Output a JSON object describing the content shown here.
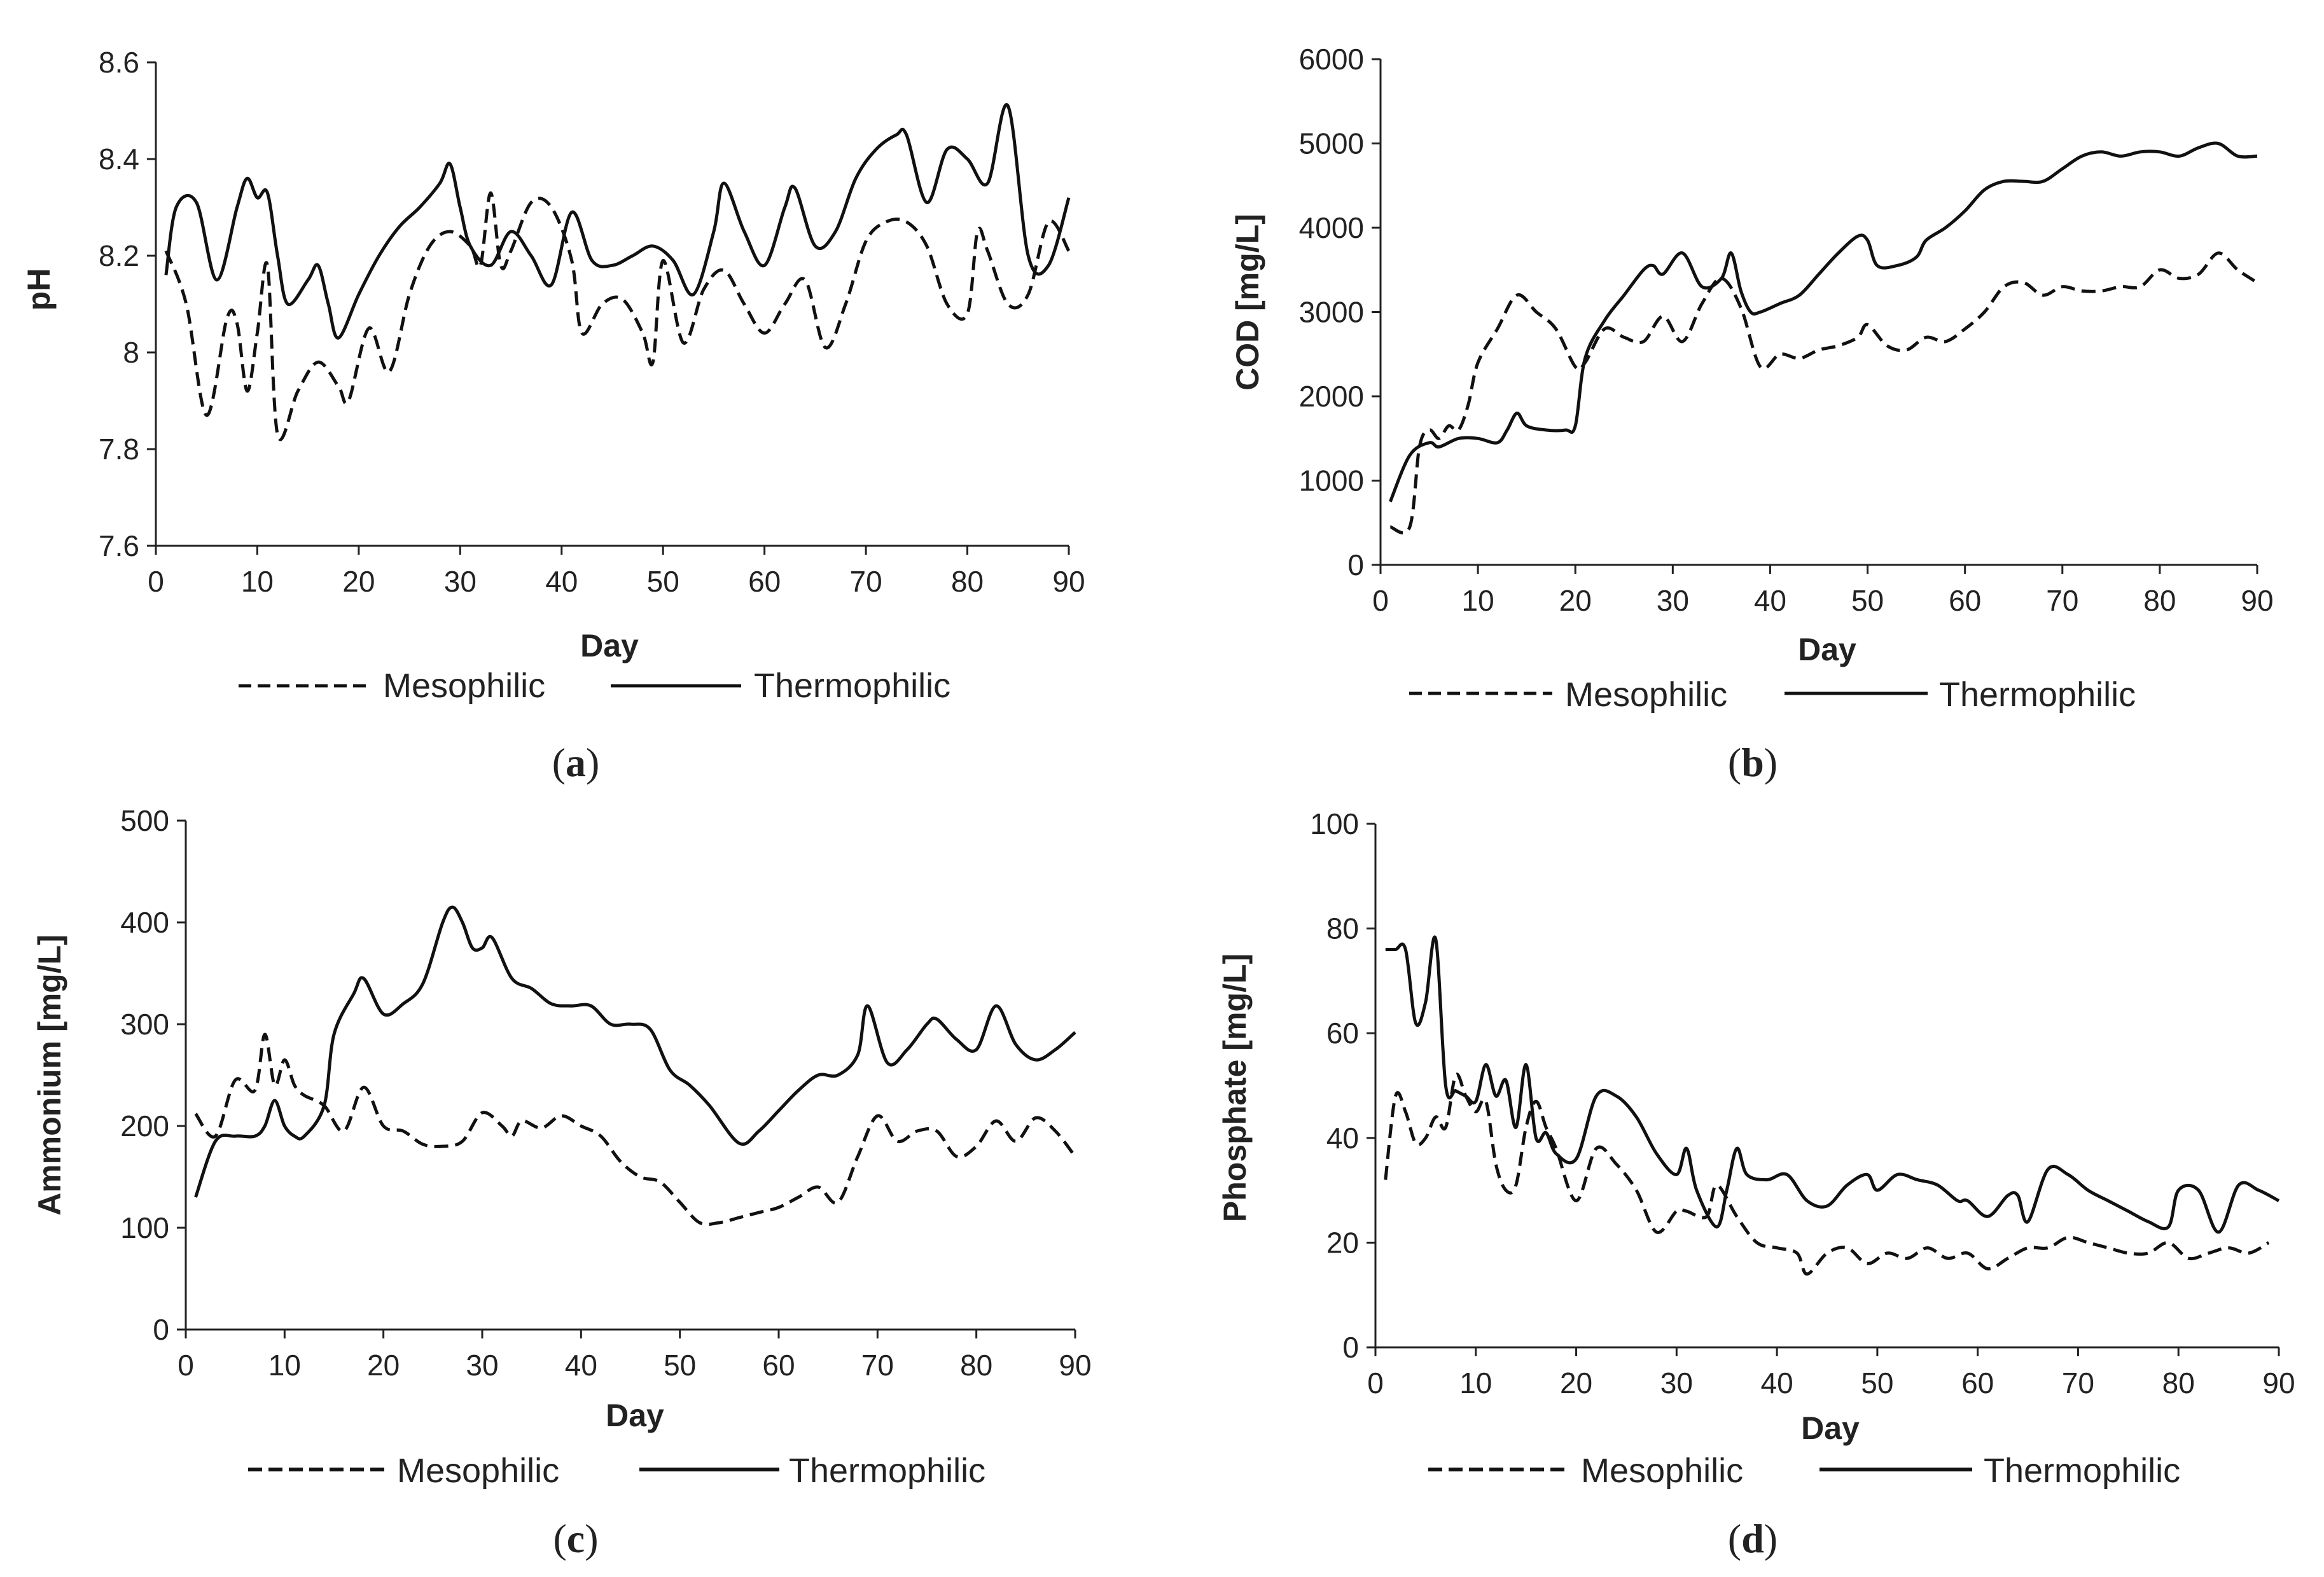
{
  "figure": {
    "colors": {
      "line": "#111111",
      "axis": "#222222",
      "text": "#222222",
      "background": "#ffffff"
    }
  },
  "chart_data": [
    {
      "type": "line",
      "panel_label": "a",
      "xlabel": "Day",
      "ylabel": "pH",
      "xlim": [
        0,
        90
      ],
      "ylim": [
        7.6,
        8.6
      ],
      "xticks": [
        "0",
        "10",
        "20",
        "30",
        "40",
        "50",
        "60",
        "70",
        "80",
        "90"
      ],
      "yticks": [
        "7.6",
        "7.8",
        "8",
        "8.2",
        "8.4",
        "8.6"
      ],
      "legend": [
        "Mesophilic",
        "Thermophilic"
      ],
      "series": [
        {
          "name": "Mesophilic",
          "style": "dashed",
          "x": [
            1,
            3,
            5,
            7,
            8,
            9,
            10,
            11,
            12,
            14,
            16,
            18,
            19,
            21,
            23,
            25,
            27,
            29,
            31,
            32,
            33,
            34,
            35,
            37,
            39,
            41,
            42,
            44,
            46,
            48,
            49,
            50,
            52,
            54,
            56,
            58,
            60,
            62,
            64,
            66,
            68,
            70,
            72,
            74,
            76,
            78,
            80,
            81,
            82,
            84,
            86,
            88,
            90
          ],
          "y": [
            8.21,
            8.1,
            7.87,
            8.07,
            8.06,
            7.92,
            8.04,
            8.18,
            7.83,
            7.92,
            7.98,
            7.93,
            7.9,
            8.05,
            7.96,
            8.12,
            8.22,
            8.25,
            8.22,
            8.18,
            8.33,
            8.18,
            8.21,
            8.31,
            8.3,
            8.19,
            8.04,
            8.1,
            8.11,
            8.04,
            7.98,
            8.19,
            8.02,
            8.13,
            8.17,
            8.1,
            8.04,
            8.1,
            8.15,
            8.01,
            8.1,
            8.23,
            8.27,
            8.27,
            8.22,
            8.1,
            8.08,
            8.25,
            8.21,
            8.1,
            8.12,
            8.27,
            8.21
          ]
        },
        {
          "name": "Thermophilic",
          "style": "solid",
          "x": [
            1,
            2,
            4,
            6,
            8,
            9,
            10,
            11,
            12,
            13,
            15,
            16,
            17,
            18,
            20,
            22,
            24,
            26,
            28,
            29,
            30,
            31,
            33,
            35,
            37,
            39,
            41,
            43,
            45,
            47,
            49,
            51,
            53,
            55,
            56,
            58,
            60,
            62,
            63,
            65,
            67,
            69,
            71,
            73,
            74,
            76,
            78,
            80,
            82,
            84,
            86,
            88,
            90
          ],
          "y": [
            8.16,
            8.3,
            8.31,
            8.15,
            8.3,
            8.36,
            8.32,
            8.33,
            8.2,
            8.1,
            8.15,
            8.18,
            8.1,
            8.03,
            8.12,
            8.2,
            8.26,
            8.3,
            8.35,
            8.39,
            8.3,
            8.22,
            8.18,
            8.25,
            8.2,
            8.14,
            8.29,
            8.19,
            8.18,
            8.2,
            8.22,
            8.19,
            8.12,
            8.25,
            8.35,
            8.25,
            8.18,
            8.3,
            8.34,
            8.22,
            8.25,
            8.36,
            8.42,
            8.45,
            8.45,
            8.31,
            8.42,
            8.4,
            8.35,
            8.51,
            8.2,
            8.18,
            8.32
          ]
        }
      ]
    },
    {
      "type": "line",
      "panel_label": "b",
      "xlabel": "Day",
      "ylabel": "COD [mg/L]",
      "xlim": [
        0,
        90
      ],
      "ylim": [
        0,
        6000
      ],
      "xticks": [
        "0",
        "10",
        "20",
        "30",
        "40",
        "50",
        "60",
        "70",
        "80",
        "90"
      ],
      "yticks": [
        "0",
        "1000",
        "2000",
        "3000",
        "4000",
        "5000",
        "6000"
      ],
      "legend": [
        "Mesophilic",
        "Thermophilic"
      ],
      "series": [
        {
          "name": "Mesophilic",
          "style": "dashed",
          "x": [
            1,
            3,
            4,
            5,
            6,
            7,
            8,
            9,
            10,
            12,
            14,
            16,
            18,
            20,
            21,
            23,
            25,
            27,
            29,
            31,
            33,
            35,
            37,
            39,
            41,
            43,
            45,
            47,
            49,
            50,
            52,
            54,
            56,
            58,
            60,
            62,
            64,
            66,
            68,
            70,
            72,
            74,
            76,
            78,
            80,
            82,
            84,
            86,
            88,
            90
          ],
          "y": [
            450,
            450,
            1400,
            1600,
            1500,
            1650,
            1600,
            1900,
            2400,
            2800,
            3200,
            3000,
            2800,
            2350,
            2400,
            2800,
            2700,
            2650,
            2950,
            2650,
            3100,
            3400,
            3050,
            2350,
            2500,
            2450,
            2550,
            2600,
            2700,
            2850,
            2600,
            2550,
            2700,
            2650,
            2800,
            3000,
            3300,
            3350,
            3200,
            3300,
            3250,
            3250,
            3300,
            3300,
            3500,
            3400,
            3450,
            3700,
            3500,
            3350
          ]
        },
        {
          "name": "Thermophilic",
          "style": "solid",
          "x": [
            1,
            3,
            5,
            6,
            8,
            10,
            12,
            13,
            14,
            15,
            17,
            19,
            20,
            21,
            23,
            25,
            27,
            28,
            29,
            31,
            33,
            35,
            36,
            37,
            38,
            39,
            41,
            43,
            45,
            47,
            49,
            50,
            51,
            53,
            55,
            56,
            58,
            60,
            62,
            64,
            66,
            68,
            70,
            72,
            74,
            76,
            78,
            80,
            82,
            84,
            86,
            88,
            90
          ],
          "y": [
            750,
            1300,
            1450,
            1400,
            1500,
            1500,
            1450,
            1600,
            1800,
            1650,
            1600,
            1600,
            1650,
            2450,
            2900,
            3200,
            3500,
            3550,
            3450,
            3700,
            3300,
            3400,
            3700,
            3250,
            3000,
            3000,
            3100,
            3200,
            3450,
            3700,
            3900,
            3850,
            3550,
            3550,
            3650,
            3850,
            4000,
            4200,
            4450,
            4550,
            4550,
            4550,
            4700,
            4850,
            4900,
            4850,
            4900,
            4900,
            4850,
            4950,
            5000,
            4850,
            4850
          ]
        }
      ]
    },
    {
      "type": "line",
      "panel_label": "c",
      "xlabel": "Day",
      "ylabel": "Ammonium [mg/L]",
      "xlim": [
        0,
        90
      ],
      "ylim": [
        0,
        500
      ],
      "xticks": [
        "0",
        "10",
        "20",
        "30",
        "40",
        "50",
        "60",
        "70",
        "80",
        "90"
      ],
      "yticks": [
        "0",
        "100",
        "200",
        "300",
        "400",
        "500"
      ],
      "legend": [
        "Mesophilic",
        "Thermophilic"
      ],
      "series": [
        {
          "name": "Mesophilic",
          "style": "dashed",
          "x": [
            1,
            3,
            5,
            7,
            8,
            9,
            10,
            11,
            12,
            14,
            16,
            18,
            20,
            22,
            24,
            26,
            28,
            30,
            32,
            33,
            34,
            36,
            38,
            40,
            42,
            44,
            46,
            48,
            50,
            52,
            54,
            56,
            58,
            60,
            62,
            64,
            66,
            68,
            70,
            72,
            74,
            76,
            78,
            80,
            82,
            84,
            86,
            88,
            90
          ],
          "y": [
            212,
            190,
            245,
            235,
            290,
            240,
            265,
            240,
            230,
            220,
            195,
            238,
            200,
            195,
            182,
            180,
            185,
            213,
            200,
            190,
            205,
            198,
            210,
            200,
            190,
            165,
            150,
            145,
            125,
            105,
            105,
            110,
            115,
            120,
            130,
            140,
            125,
            170,
            210,
            185,
            195,
            195,
            170,
            180,
            205,
            185,
            208,
            195,
            170
          ]
        },
        {
          "name": "Thermophilic",
          "style": "solid",
          "x": [
            1,
            3,
            5,
            7,
            8,
            9,
            10,
            11,
            12,
            14,
            15,
            17,
            18,
            20,
            22,
            24,
            26,
            27,
            28,
            29,
            30,
            31,
            33,
            35,
            37,
            39,
            41,
            43,
            45,
            47,
            49,
            51,
            53,
            56,
            58,
            60,
            62,
            64,
            66,
            68,
            69,
            71,
            73,
            75,
            76,
            78,
            80,
            82,
            84,
            86,
            88,
            90
          ],
          "y": [
            130,
            185,
            190,
            190,
            200,
            225,
            200,
            190,
            190,
            220,
            290,
            330,
            345,
            310,
            320,
            340,
            400,
            415,
            400,
            375,
            375,
            385,
            345,
            335,
            320,
            318,
            318,
            300,
            300,
            295,
            255,
            240,
            220,
            183,
            195,
            215,
            235,
            250,
            250,
            270,
            318,
            262,
            275,
            300,
            305,
            285,
            275,
            318,
            280,
            265,
            275,
            292
          ]
        }
      ]
    },
    {
      "type": "line",
      "panel_label": "d",
      "xlabel": "Day",
      "ylabel": "Phosphate [mg/L]",
      "xlim": [
        0,
        90
      ],
      "ylim": [
        0,
        100
      ],
      "xticks": [
        "0",
        "10",
        "20",
        "30",
        "40",
        "50",
        "60",
        "70",
        "80",
        "90"
      ],
      "yticks": [
        "0",
        "20",
        "40",
        "60",
        "80",
        "100"
      ],
      "legend": [
        "Mesophilic",
        "Thermophilic"
      ],
      "series": [
        {
          "name": "Mesophilic",
          "style": "dashed",
          "x": [
            1,
            2,
            3,
            4,
            5,
            6,
            7,
            8,
            9,
            10,
            11,
            12,
            13,
            14,
            15,
            16,
            17,
            18,
            20,
            22,
            24,
            26,
            28,
            30,
            31,
            33,
            34,
            36,
            38,
            40,
            42,
            43,
            45,
            47,
            49,
            51,
            53,
            55,
            57,
            59,
            61,
            63,
            65,
            67,
            69,
            71,
            73,
            75,
            77,
            79,
            81,
            83,
            85,
            87,
            89
          ],
          "y": [
            32,
            48,
            45,
            39,
            40,
            44,
            42,
            52,
            48,
            45,
            47,
            35,
            30,
            31,
            42,
            47,
            42,
            38,
            28,
            38,
            35,
            30,
            22,
            26,
            26,
            25,
            31,
            25,
            20,
            19,
            18,
            14,
            18,
            19,
            16,
            18,
            17,
            19,
            17,
            18,
            15,
            17,
            19,
            19,
            21,
            20,
            19,
            18,
            18,
            20,
            17,
            18,
            19,
            18,
            20
          ]
        },
        {
          "name": "Thermophilic",
          "style": "solid",
          "x": [
            1,
            2,
            3,
            4,
            5,
            6,
            7,
            8,
            9,
            10,
            11,
            12,
            13,
            14,
            15,
            16,
            17,
            18,
            20,
            22,
            24,
            26,
            28,
            30,
            31,
            32,
            34,
            35,
            36,
            37,
            39,
            41,
            43,
            45,
            47,
            49,
            50,
            52,
            54,
            56,
            58,
            59,
            61,
            63,
            64,
            65,
            67,
            69,
            71,
            73,
            75,
            77,
            79,
            80,
            82,
            84,
            86,
            88,
            90
          ],
          "y": [
            76,
            76,
            76,
            62,
            66,
            78,
            50,
            49,
            48,
            47,
            54,
            48,
            51,
            42,
            54,
            40,
            41,
            37,
            36,
            48,
            48,
            44,
            37,
            33,
            38,
            30,
            23,
            30,
            38,
            33,
            32,
            33,
            28,
            27,
            31,
            33,
            30,
            33,
            32,
            31,
            28,
            28,
            25,
            29,
            29,
            24,
            34,
            33,
            30,
            28,
            26,
            24,
            23,
            30,
            30,
            22,
            31,
            30,
            28
          ]
        }
      ]
    }
  ]
}
